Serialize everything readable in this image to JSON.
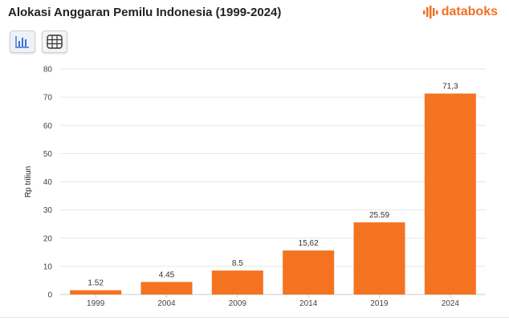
{
  "title": "Alokasi Anggaran Pemilu Indonesia (1999-2024)",
  "logo": {
    "text": "databoks",
    "icon": "databoks-logo-icon",
    "color": "#f26f21"
  },
  "toolbar": {
    "buttons": [
      {
        "icon": "bar-chart-icon",
        "active": true
      },
      {
        "icon": "table-grid-icon",
        "active": false
      }
    ]
  },
  "colors": {
    "bar": "#f47321",
    "grid": "#e6e6e6",
    "axis": "#cccccc"
  },
  "chart_data": {
    "type": "bar",
    "title": "Alokasi Anggaran Pemilu Indonesia (1999-2024)",
    "xlabel": "",
    "ylabel": "Rp triliun",
    "categories": [
      "1999",
      "2004",
      "2009",
      "2014",
      "2019",
      "2024"
    ],
    "values": [
      1.52,
      4.45,
      8.5,
      15.62,
      25.59,
      71.3
    ],
    "data_labels": [
      "1.52",
      "4.45",
      "8.5",
      "15,62",
      "25.59",
      "71,3"
    ],
    "ylim": [
      0,
      80
    ],
    "yticks": [
      0,
      10,
      20,
      30,
      40,
      50,
      60,
      70,
      80
    ],
    "grid": true,
    "legend": "none"
  }
}
